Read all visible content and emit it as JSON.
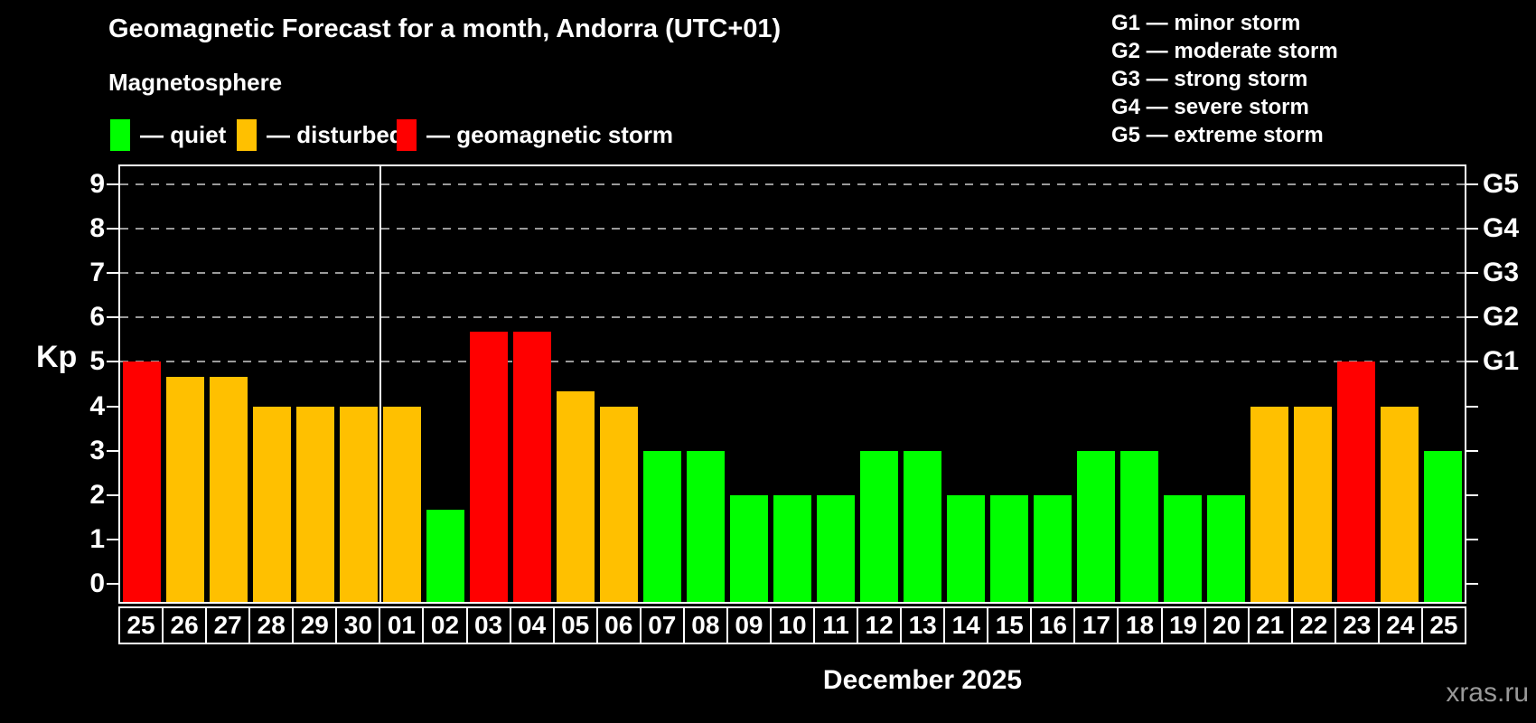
{
  "page": {
    "watermark": "xras.ru"
  },
  "header": {
    "title": "Geomagnetic Forecast for a month, Andorra (UTC+01)",
    "subtitle": "Magnetosphere"
  },
  "legend": {
    "items": [
      {
        "key": "quiet",
        "label": "— quiet",
        "color": "#00ff00"
      },
      {
        "key": "disturbed",
        "label": "— disturbed",
        "color": "#ffc000"
      },
      {
        "key": "storm",
        "label": "— geomagnetic storm",
        "color": "#ff0000"
      }
    ]
  },
  "g_legend": [
    "G1 — minor storm",
    "G2 — moderate storm",
    "G3 — strong storm",
    "G4 — severe storm",
    "G5 — extreme storm"
  ],
  "chart_data": {
    "type": "bar",
    "title": "Geomagnetic Forecast for a month, Andorra (UTC+01)",
    "categories": [
      "25",
      "26",
      "27",
      "28",
      "29",
      "30",
      "01",
      "02",
      "03",
      "04",
      "05",
      "06",
      "07",
      "08",
      "09",
      "10",
      "11",
      "12",
      "13",
      "14",
      "15",
      "16",
      "17",
      "18",
      "19",
      "20",
      "21",
      "22",
      "23",
      "24",
      "25"
    ],
    "values": [
      5,
      4.67,
      4.67,
      4,
      4,
      4,
      4,
      1.67,
      5.67,
      5.67,
      4.33,
      4,
      3,
      3,
      2,
      2,
      2,
      3,
      3,
      2,
      2,
      2,
      3,
      3,
      2,
      2,
      4,
      4,
      5,
      4,
      3
    ],
    "statuses": [
      "storm",
      "disturbed",
      "disturbed",
      "disturbed",
      "disturbed",
      "disturbed",
      "disturbed",
      "quiet",
      "storm",
      "storm",
      "disturbed",
      "disturbed",
      "quiet",
      "quiet",
      "quiet",
      "quiet",
      "quiet",
      "quiet",
      "quiet",
      "quiet",
      "quiet",
      "quiet",
      "quiet",
      "quiet",
      "quiet",
      "quiet",
      "disturbed",
      "disturbed",
      "storm",
      "disturbed",
      "quiet"
    ],
    "colors": {
      "quiet": "#00ff00",
      "disturbed": "#ffc000",
      "storm": "#ff0000",
      "grid": "#9a9a9a",
      "axis": "#ffffff"
    },
    "ylabel": "Kp",
    "xlabel": "December 2025",
    "ylim": [
      -0.4,
      9.4
    ],
    "yticks": [
      0,
      1,
      2,
      3,
      4,
      5,
      6,
      7,
      8,
      9
    ],
    "gridlines": [
      5,
      6,
      7,
      8,
      9
    ],
    "right_axis": {
      "labels": [
        {
          "kp": 5,
          "text": "G1"
        },
        {
          "kp": 6,
          "text": "G2"
        },
        {
          "kp": 7,
          "text": "G3"
        },
        {
          "kp": 8,
          "text": "G4"
        },
        {
          "kp": 9,
          "text": "G5"
        }
      ]
    },
    "month_separator_after": 6,
    "grid": "dashed-horizontal-on-storm-levels",
    "legend_position": "top-left"
  }
}
